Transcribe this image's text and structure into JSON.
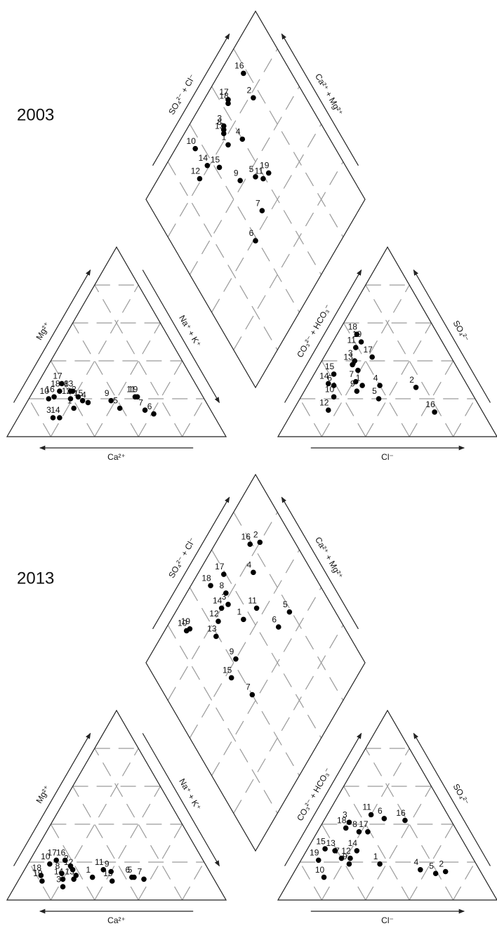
{
  "chart_data": [
    {
      "type": "piper",
      "title": "2003",
      "axes": {
        "cation_left": "Mg²⁺",
        "cation_right": "Na⁺ + K⁺",
        "cation_base": "Ca²⁺",
        "anion_left": "CO₃²⁻ + HCO₃⁻",
        "anion_right": "SO₄²⁻",
        "anion_base": "Cl⁻",
        "diamond_left": "SO₄²⁻ + Cl⁻",
        "diamond_right": "Ca²⁺ + Mg²⁺"
      },
      "ticks": [
        20,
        40,
        60,
        80
      ],
      "grid": true,
      "color": "#000000",
      "samples": [
        {
          "label": "1",
          "mg": 15,
          "na_k": 23,
          "so4": 27,
          "cl": 25
        },
        {
          "label": "2",
          "mg": 21,
          "na_k": 22,
          "so4": 26,
          "cl": 50
        },
        {
          "label": "3",
          "mg": 10,
          "na_k": 16,
          "so4": 40,
          "cl": 15
        },
        {
          "label": "4",
          "mg": 18,
          "na_k": 28,
          "so4": 27,
          "cl": 33
        },
        {
          "label": "5",
          "mg": 15,
          "na_k": 44,
          "so4": 20,
          "cl": 36
        },
        {
          "label": "6",
          "mg": 12,
          "na_k": 61,
          "so4": 27,
          "cl": 12
        },
        {
          "label": "7",
          "mg": 14,
          "na_k": 56,
          "so4": 29,
          "cl": 21
        },
        {
          "label": "8",
          "mg": 24,
          "na_k": 17,
          "so4": 35,
          "cl": 19
        },
        {
          "label": "9",
          "mg": 19,
          "na_k": 38,
          "so4": 24,
          "cl": 24
        },
        {
          "label": "10",
          "mg": 20,
          "na_k": 9,
          "so4": 21,
          "cl": 15
        },
        {
          "label": "11",
          "mg": 21,
          "na_k": 48,
          "so4": 47,
          "cl": 12
        },
        {
          "label": "12",
          "mg": 20,
          "na_k": 19,
          "so4": 14,
          "cl": 16
        },
        {
          "label": "13",
          "mg": 24,
          "na_k": 18,
          "so4": 38,
          "cl": 15
        },
        {
          "label": "14",
          "mg": 10,
          "na_k": 19,
          "so4": 28,
          "cl": 9
        },
        {
          "label": "15",
          "mg": 19,
          "na_k": 25,
          "so4": 33,
          "cl": 9
        },
        {
          "label": "16",
          "mg": 21,
          "na_k": 11,
          "so4": 13,
          "cl": 65
        },
        {
          "label": "17",
          "mg": 28,
          "na_k": 11,
          "so4": 42,
          "cl": 22
        },
        {
          "label": "18",
          "mg": 24,
          "na_k": 12,
          "so4": 54,
          "cl": 9
        },
        {
          "label": "19",
          "mg": 21,
          "na_k": 49,
          "so4": 50,
          "cl": 13
        }
      ]
    },
    {
      "type": "piper",
      "title": "2013",
      "axes": {
        "cation_left": "Mg²⁺",
        "cation_right": "Na⁺ + K⁺",
        "cation_base": "Ca²⁺",
        "anion_left": "CO₃²⁻ + HCO₃⁻",
        "anion_right": "SO₄²⁻",
        "anion_base": "Cl⁻",
        "diamond_left": "SO₄²⁻ + Cl⁻",
        "diamond_right": "Ca²⁺ + Mg²⁺"
      },
      "ticks": [
        20,
        40,
        60,
        80
      ],
      "grid": true,
      "color": "#000000",
      "samples": [
        {
          "label": "1",
          "mg": 12,
          "na_k": 33,
          "so4": 19,
          "cl": 37
        },
        {
          "label": "2",
          "mg": 18,
          "na_k": 20,
          "so4": 15,
          "cl": 69
        },
        {
          "label": "3",
          "mg": 7,
          "na_k": 22,
          "so4": 41,
          "cl": 12
        },
        {
          "label": "4",
          "mg": 13,
          "na_k": 25,
          "so4": 16,
          "cl": 57
        },
        {
          "label": "5",
          "mg": 12,
          "na_k": 52,
          "so4": 14,
          "cl": 65
        },
        {
          "label": "6",
          "mg": 12,
          "na_k": 51,
          "so4": 43,
          "cl": 27
        },
        {
          "label": "7",
          "mg": 11,
          "na_k": 57,
          "so4": 22,
          "cl": 18
        },
        {
          "label": "8",
          "mg": 14,
          "na_k": 18,
          "so4": 36,
          "cl": 19
        },
        {
          "label": "9",
          "mg": 15,
          "na_k": 40,
          "so4": 19,
          "cl": 23
        },
        {
          "label": "10",
          "mg": 19,
          "na_k": 10,
          "so4": 12,
          "cl": 15
        },
        {
          "label": "11",
          "mg": 16,
          "na_k": 36,
          "so4": 45,
          "cl": 20
        },
        {
          "label": "12",
          "mg": 16,
          "na_k": 22,
          "so4": 22,
          "cl": 22
        },
        {
          "label": "13",
          "mg": 11,
          "na_k": 25,
          "so4": 26,
          "cl": 13
        },
        {
          "label": "14",
          "mg": 11,
          "na_k": 20,
          "so4": 26,
          "cl": 23
        },
        {
          "label": "15",
          "mg": 10,
          "na_k": 43,
          "so4": 27,
          "cl": 8
        },
        {
          "label": "16",
          "mg": 21,
          "na_k": 16,
          "so4": 42,
          "cl": 37
        },
        {
          "label": "17",
          "mg": 21,
          "na_k": 12,
          "so4": 36,
          "cl": 23
        },
        {
          "label": "18",
          "mg": 13,
          "na_k": 9,
          "so4": 38,
          "cl": 12
        },
        {
          "label": "19",
          "mg": 10,
          "na_k": 11,
          "so4": 21,
          "cl": 8
        }
      ]
    }
  ]
}
